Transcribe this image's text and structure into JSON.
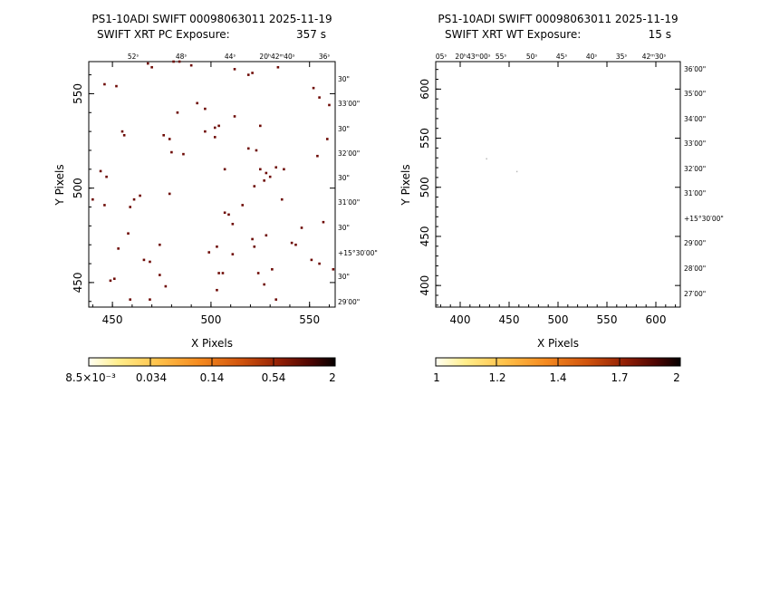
{
  "panels": [
    {
      "title": "PS1-10ADI SWIFT 00098063011 2025-11-19",
      "subtitle": "SWIFT XRT PC Exposure:",
      "exposure": "357 s",
      "xlabel": "X Pixels",
      "ylabel": "Y Pixels",
      "top_ticks": [
        "52ˢ",
        "48ˢ",
        "44ˢ",
        "20ʰ42ᵐ40ˢ",
        "36ˢ"
      ],
      "right_ticks": [
        "30\"",
        "33′00\"",
        "30\"",
        "32′00\"",
        "30\"",
        "31′00\"",
        "30\"",
        "+15°30′00\"",
        "30\"",
        "29′00\""
      ],
      "colorbar_labels": [
        "8.5×10⁻³",
        "0.034",
        "0.14",
        "0.54",
        "2"
      ]
    },
    {
      "title": "PS1-10ADI SWIFT 00098063011 2025-11-19",
      "subtitle": "SWIFT XRT WT Exposure:",
      "exposure": "15 s",
      "xlabel": "X Pixels",
      "ylabel": "Y Pixels",
      "top_ticks": [
        "05ˢ",
        "20ʰ43ᵐ00ˢ",
        "55ˢ",
        "50ˢ",
        "45ˢ",
        "40ˢ",
        "35ˢ",
        "42ᵐ30ˢ"
      ],
      "right_ticks": [
        "36′00\"",
        "35′00\"",
        "34′00\"",
        "33′00\"",
        "32′00\"",
        "31′00\"",
        "+15°30′00\"",
        "29′00\"",
        "28′00\"",
        "27′00\""
      ],
      "colorbar_labels": [
        "1",
        "1.2",
        "1.4",
        "1.7",
        "2"
      ]
    }
  ],
  "chart_data": [
    {
      "type": "scatter",
      "title": "PS1-10ADI SWIFT 00098063011 2025-11-19",
      "subtitle": "SWIFT XRT PC Exposure: 357 s",
      "xlabel": "X Pixels",
      "ylabel": "Y Pixels",
      "xlim": [
        438,
        563
      ],
      "ylim": [
        437,
        567
      ],
      "xticks": [
        450,
        500,
        550
      ],
      "yticks": [
        450,
        500,
        550
      ],
      "colorscale": "heat",
      "points": [
        [
          446,
          555
        ],
        [
          452,
          554
        ],
        [
          468,
          566
        ],
        [
          470,
          564
        ],
        [
          481,
          567
        ],
        [
          484,
          567
        ],
        [
          490,
          565
        ],
        [
          512,
          563
        ],
        [
          519,
          560
        ],
        [
          521,
          561
        ],
        [
          534,
          564
        ],
        [
          552,
          553
        ],
        [
          555,
          548
        ],
        [
          560,
          544
        ],
        [
          493,
          545
        ],
        [
          497,
          542
        ],
        [
          483,
          540
        ],
        [
          455,
          530
        ],
        [
          456,
          528
        ],
        [
          476,
          528
        ],
        [
          479,
          526
        ],
        [
          480,
          519
        ],
        [
          486,
          518
        ],
        [
          497,
          530
        ],
        [
          502,
          532
        ],
        [
          504,
          533
        ],
        [
          512,
          538
        ],
        [
          525,
          533
        ],
        [
          502,
          527
        ],
        [
          519,
          521
        ],
        [
          523,
          520
        ],
        [
          554,
          517
        ],
        [
          559,
          526
        ],
        [
          444,
          509
        ],
        [
          447,
          506
        ],
        [
          507,
          510
        ],
        [
          525,
          510
        ],
        [
          528,
          508
        ],
        [
          522,
          501
        ],
        [
          527,
          504
        ],
        [
          530,
          506
        ],
        [
          533,
          511
        ],
        [
          537,
          510
        ],
        [
          479,
          497
        ],
        [
          464,
          496
        ],
        [
          461,
          494
        ],
        [
          459,
          490
        ],
        [
          446,
          491
        ],
        [
          516,
          491
        ],
        [
          536,
          494
        ],
        [
          440,
          494
        ],
        [
          507,
          487
        ],
        [
          509,
          486
        ],
        [
          511,
          481
        ],
        [
          546,
          479
        ],
        [
          557,
          482
        ],
        [
          458,
          476
        ],
        [
          503,
          469
        ],
        [
          521,
          473
        ],
        [
          528,
          475
        ],
        [
          541,
          471
        ],
        [
          543,
          470
        ],
        [
          474,
          470
        ],
        [
          499,
          466
        ],
        [
          522,
          469
        ],
        [
          453,
          468
        ],
        [
          511,
          465
        ],
        [
          466,
          462
        ],
        [
          469,
          461
        ],
        [
          474,
          454
        ],
        [
          504,
          455
        ],
        [
          506,
          455
        ],
        [
          524,
          455
        ],
        [
          531,
          457
        ],
        [
          551,
          462
        ],
        [
          555,
          460
        ],
        [
          562,
          457
        ],
        [
          449,
          451
        ],
        [
          451,
          452
        ],
        [
          477,
          448
        ],
        [
          503,
          446
        ],
        [
          527,
          449
        ],
        [
          459,
          441
        ],
        [
          469,
          441
        ],
        [
          533,
          441
        ]
      ],
      "value_scale_labels": [
        "8.5×10⁻³",
        "0.034",
        "0.14",
        "0.54",
        "2"
      ]
    },
    {
      "type": "scatter",
      "title": "PS1-10ADI SWIFT 00098063011 2025-11-19",
      "subtitle": "SWIFT XRT WT Exposure: 15 s",
      "xlabel": "X Pixels",
      "ylabel": "Y Pixels",
      "xlim": [
        375,
        625
      ],
      "ylim": [
        378,
        628
      ],
      "xticks": [
        400,
        450,
        500,
        550,
        600
      ],
      "yticks": [
        400,
        450,
        500,
        550,
        600
      ],
      "colorscale": "heat",
      "points": [
        [
          427,
          529
        ],
        [
          458,
          516
        ]
      ],
      "value_scale_labels": [
        "1",
        "1.2",
        "1.4",
        "1.7",
        "2"
      ]
    }
  ]
}
